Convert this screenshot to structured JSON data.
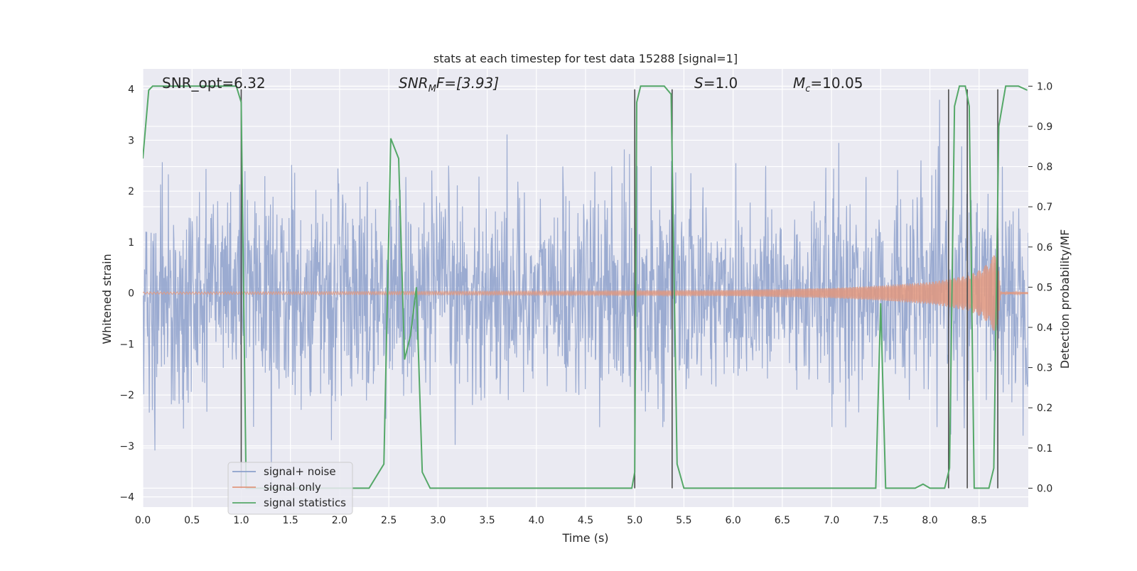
{
  "chart_data": {
    "type": "line",
    "title": "stats at each timestep for test data 15288 [signal=1]",
    "xlabel": "Time (s)",
    "ylabel": "Whitened strain",
    "y2label": "Detection probability/MF",
    "xlim": [
      0.0,
      9.0
    ],
    "ylim": [
      -4.2,
      4.4
    ],
    "y2lim": [
      -0.047,
      1.043
    ],
    "xticks": [
      "0.0",
      "0.5",
      "1.0",
      "1.5",
      "2.0",
      "2.5",
      "3.0",
      "3.5",
      "4.0",
      "4.5",
      "5.0",
      "5.5",
      "6.0",
      "6.5",
      "7.0",
      "7.5",
      "8.0",
      "8.5"
    ],
    "yticks": [
      "4",
      "3",
      "2",
      "1",
      "0",
      "−1",
      "−2",
      "−3",
      "−4"
    ],
    "y2ticks": [
      "1.0",
      "0.9",
      "0.8",
      "0.7",
      "0.6",
      "0.5",
      "0.4",
      "0.3",
      "0.2",
      "0.1",
      "0.0"
    ],
    "grid": true,
    "legend_position": "lower-left",
    "annotations": {
      "snr_opt": "SNR_opt=6.32",
      "snr_mf_italic": "SNR",
      "snr_mf_sub": "M",
      "snr_mf_rest": "F=[3.93]",
      "s_italic": "S",
      "s_rest": "=1.0",
      "mc_italic": "M",
      "mc_sub": "c",
      "mc_rest": "=10.05"
    },
    "vlines_x": [
      1.0,
      5.0,
      5.38,
      8.19,
      8.38,
      8.69
    ],
    "series": [
      {
        "name": "signal+ noise",
        "color": "#8da0cb",
        "style": "noise",
        "amplitude_typical": 1.6,
        "amplitude_peak": 3.9,
        "samples": 2048
      },
      {
        "name": "signal only",
        "color": "#e1977e",
        "style": "chirp",
        "envelope_x": [
          0.0,
          4.0,
          6.0,
          7.0,
          7.5,
          8.0,
          8.2,
          8.4,
          8.5,
          8.6,
          8.65,
          8.69,
          8.72,
          9.0
        ],
        "envelope_y": [
          0.02,
          0.04,
          0.06,
          0.1,
          0.15,
          0.22,
          0.28,
          0.36,
          0.45,
          0.6,
          0.75,
          0.8,
          0.02,
          0.02
        ]
      },
      {
        "name": "signal statistics",
        "color": "#55a868",
        "style": "line",
        "axis": "y2",
        "x": [
          0.0,
          0.06,
          0.1,
          0.95,
          1.0,
          1.05,
          1.1,
          2.3,
          2.45,
          2.52,
          2.6,
          2.66,
          2.72,
          2.78,
          2.84,
          2.92,
          3.0,
          3.85,
          3.9,
          4.9,
          4.97,
          5.0,
          5.02,
          5.06,
          5.1,
          5.3,
          5.37,
          5.43,
          5.5,
          5.56,
          7.35,
          7.45,
          7.5,
          7.55,
          7.6,
          7.85,
          7.93,
          8.0,
          8.15,
          8.2,
          8.25,
          8.3,
          8.36,
          8.4,
          8.45,
          8.6,
          8.65,
          8.7,
          8.77,
          8.9,
          8.99
        ],
        "y": [
          0.82,
          0.99,
          1.0,
          1.0,
          0.96,
          0.0,
          0.0,
          0.0,
          0.06,
          0.87,
          0.82,
          0.32,
          0.38,
          0.5,
          0.04,
          0.0,
          0.0,
          0.0,
          0.0,
          0.0,
          0.0,
          0.04,
          0.96,
          1.0,
          1.0,
          1.0,
          0.98,
          0.06,
          0.0,
          0.0,
          0.0,
          0.0,
          0.46,
          0.0,
          0.0,
          0.0,
          0.01,
          0.0,
          0.0,
          0.05,
          0.95,
          1.0,
          1.0,
          0.95,
          0.0,
          0.0,
          0.05,
          0.9,
          1.0,
          1.0,
          0.99
        ]
      }
    ]
  }
}
